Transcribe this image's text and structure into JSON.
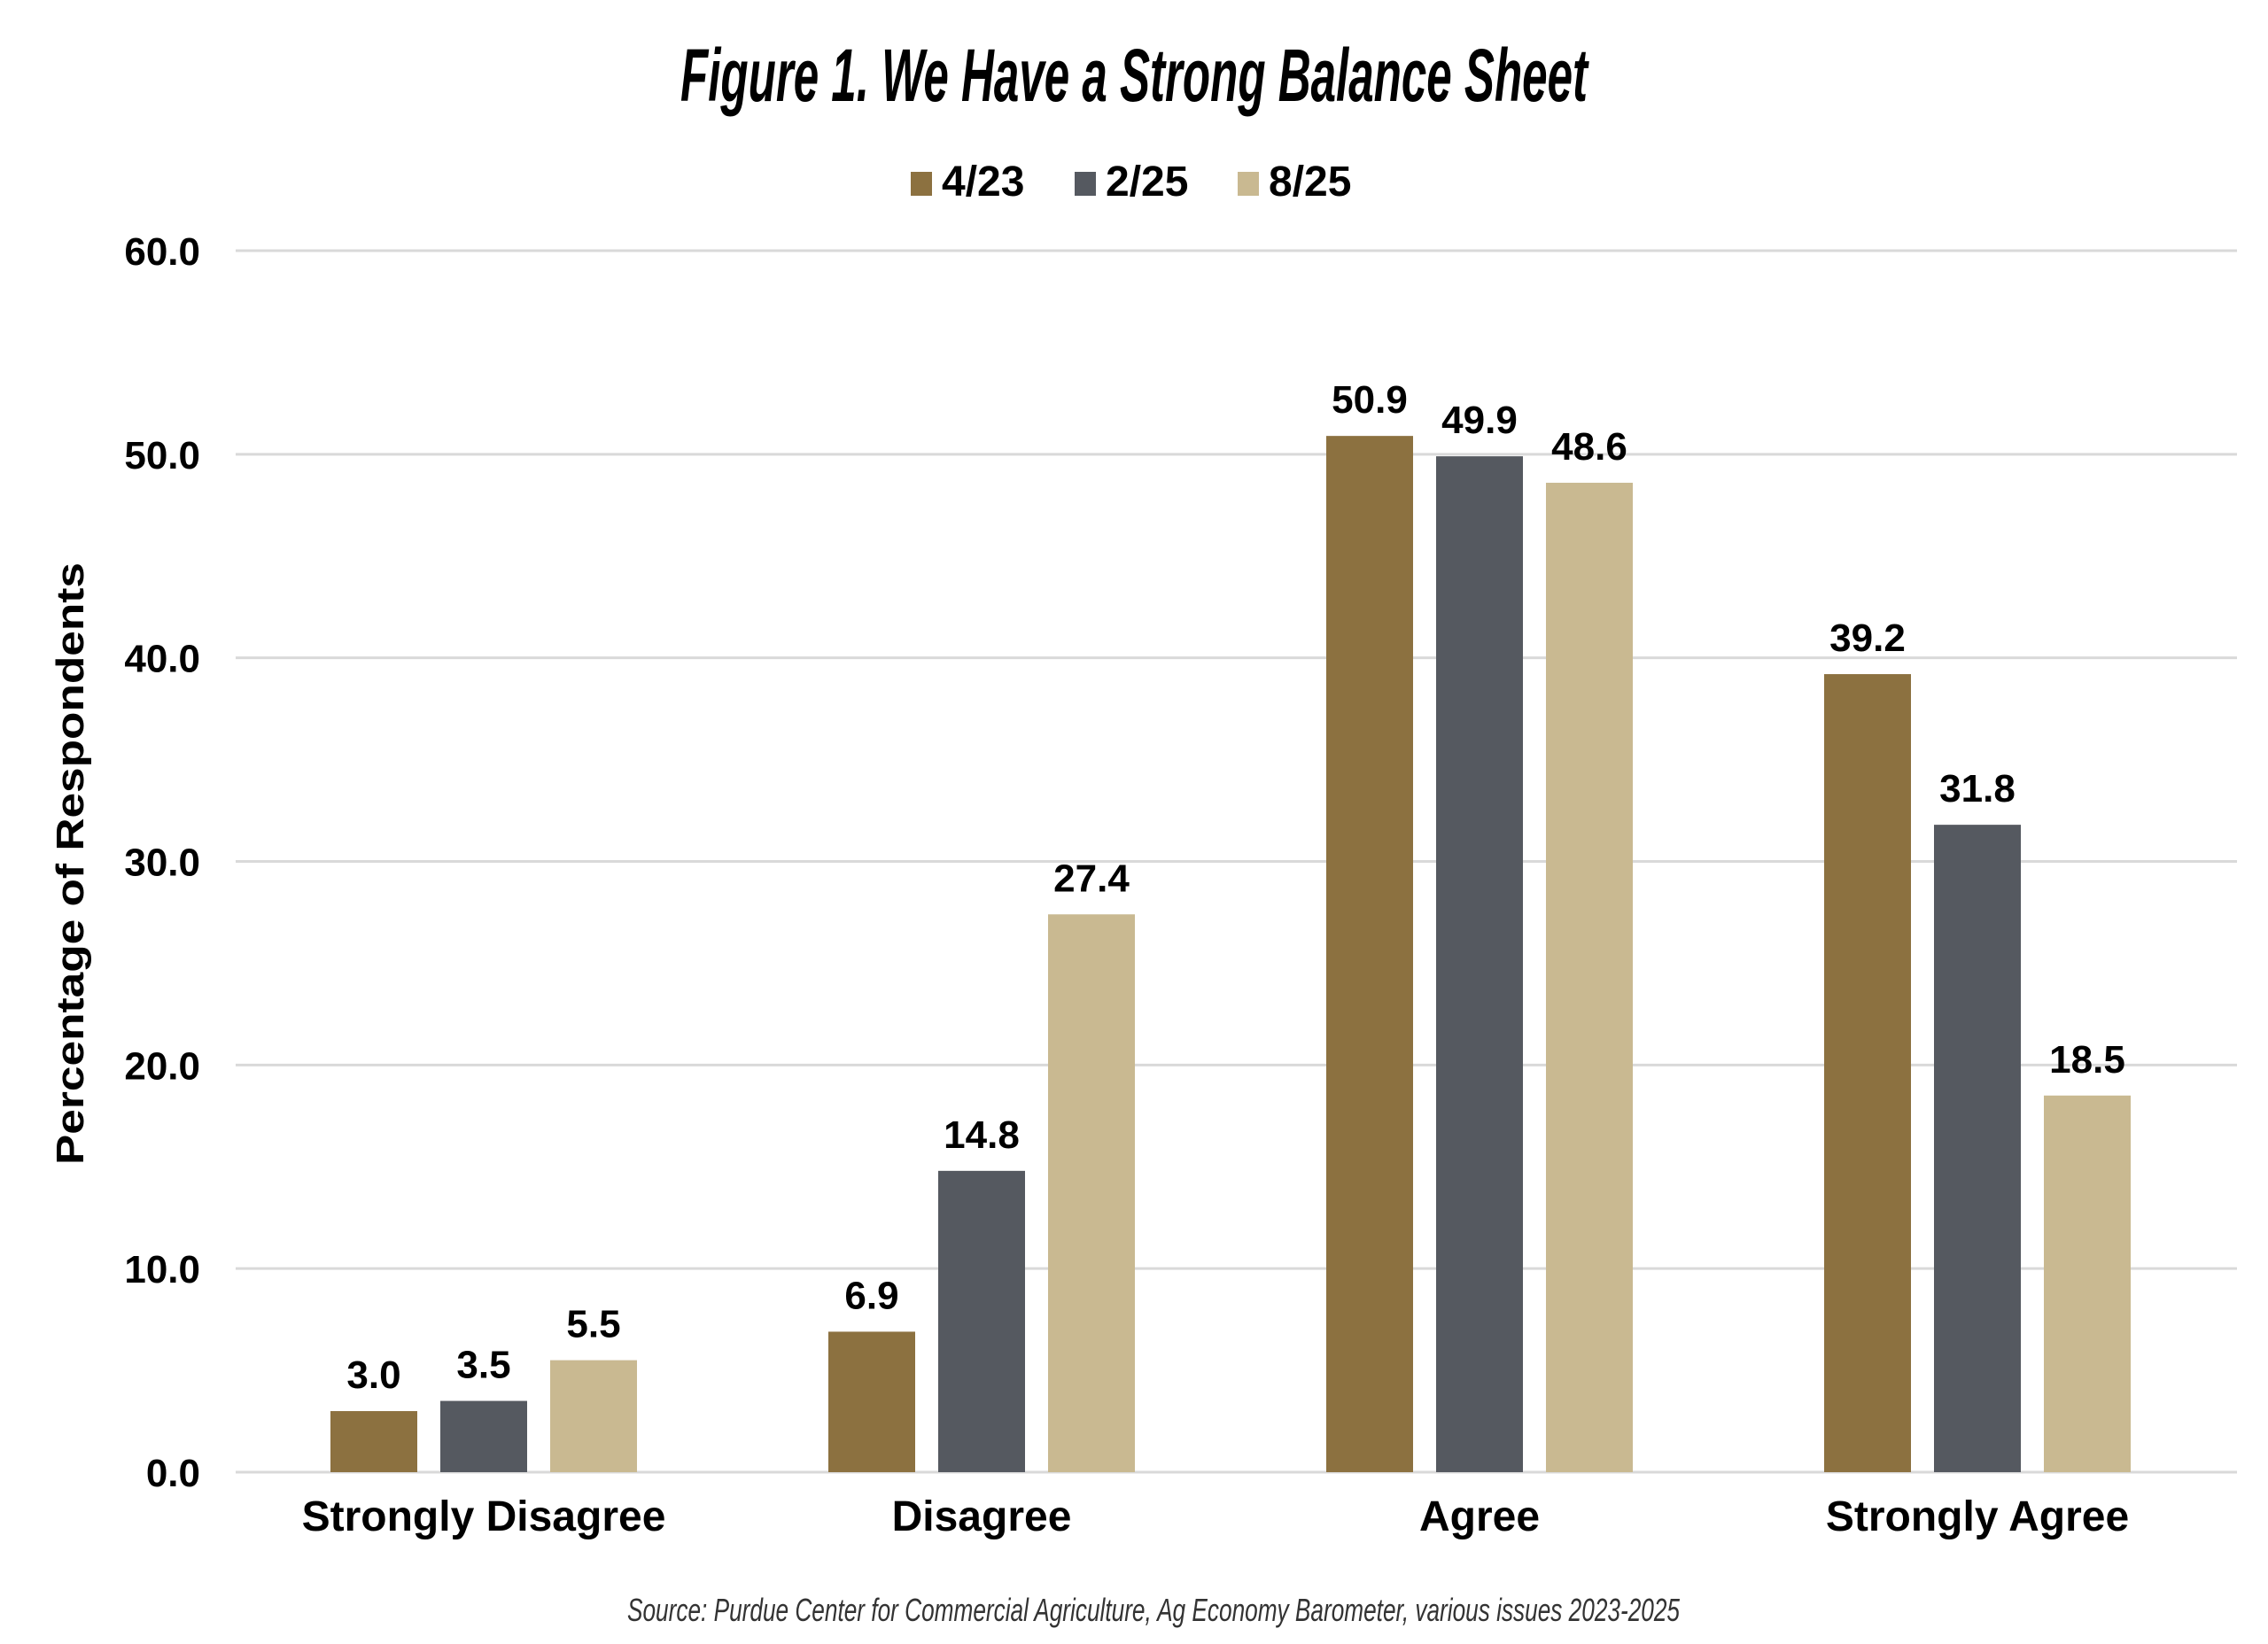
{
  "chart_data": {
    "type": "bar",
    "title": "Figure 1. We Have a Strong Balance Sheet",
    "xlabel": "",
    "ylabel": "Percentage of Respondents",
    "ylim": [
      0,
      60
    ],
    "yticks": [
      "0.0",
      "10.0",
      "20.0",
      "30.0",
      "40.0",
      "50.0",
      "60.0"
    ],
    "grid": true,
    "legend_position": "top-center",
    "categories": [
      "Strongly Disagree",
      "Disagree",
      "Agree",
      "Strongly Agree"
    ],
    "series": [
      {
        "name": "4/23",
        "color": "#8c7140",
        "values": [
          3.0,
          6.9,
          50.9,
          39.2
        ],
        "labels": [
          "3.0",
          "6.9",
          "50.9",
          "39.2"
        ]
      },
      {
        "name": "2/25",
        "color": "#555960",
        "values": [
          3.5,
          14.8,
          49.9,
          31.8
        ],
        "labels": [
          "3.5",
          "14.8",
          "49.9",
          "31.8"
        ]
      },
      {
        "name": "8/25",
        "color": "#c9b991",
        "values": [
          5.5,
          27.4,
          48.6,
          18.5
        ],
        "labels": [
          "5.5",
          "27.4",
          "48.6",
          "18.5"
        ]
      }
    ],
    "source": "Source:  Purdue Center for Commercial Agriculture, Ag Economy Barometer, various issues 2023-2025"
  }
}
